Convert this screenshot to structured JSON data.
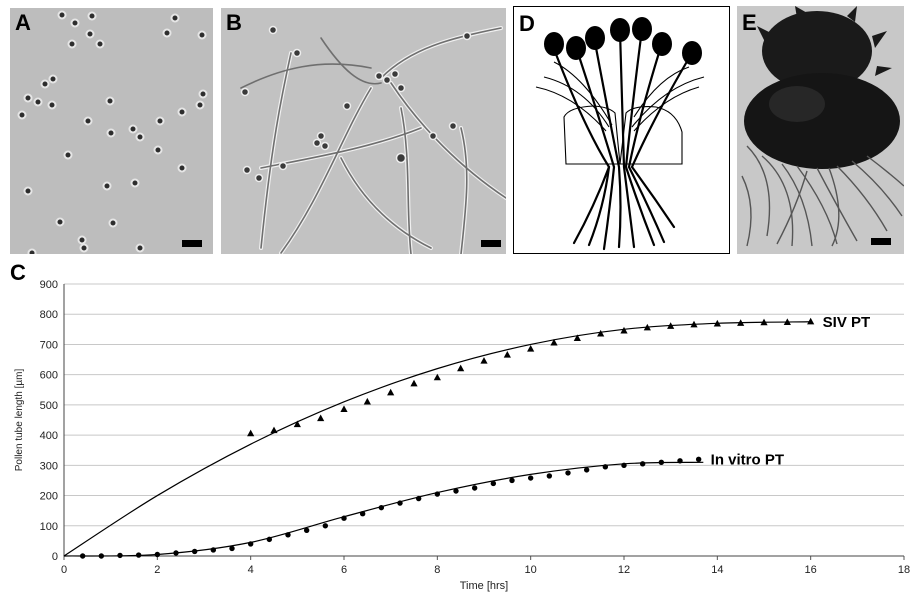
{
  "panels": {
    "a": "A",
    "b": "B",
    "c": "C",
    "d": "D",
    "e": "E"
  },
  "chart_data": {
    "type": "scatter",
    "title": "",
    "xlabel": "Time [hrs]",
    "ylabel": "Pollen tube length [µm]",
    "xlim": [
      0,
      18
    ],
    "ylim": [
      0,
      900
    ],
    "xticks": [
      0,
      2,
      4,
      6,
      8,
      10,
      12,
      14,
      16,
      18
    ],
    "yticks": [
      0,
      100,
      200,
      300,
      400,
      500,
      600,
      700,
      800,
      900
    ],
    "grid": "horizontal",
    "series": [
      {
        "name": "SIV PT",
        "marker": "triangle",
        "x": [
          4,
          4.5,
          5,
          5.5,
          6,
          6.5,
          7,
          7.5,
          8,
          8.5,
          9,
          9.5,
          10,
          10.5,
          11,
          11.5,
          12,
          12.5,
          13,
          13.5,
          14,
          14.5,
          15,
          15.5,
          16
        ],
        "y": [
          405,
          415,
          435,
          455,
          485,
          510,
          540,
          570,
          590,
          620,
          645,
          665,
          685,
          705,
          720,
          735,
          745,
          755,
          760,
          765,
          768,
          770,
          772,
          773,
          775
        ],
        "fit_x": [
          0,
          2,
          4,
          6,
          8,
          10,
          12,
          14,
          16
        ],
        "fit_y": [
          0,
          200,
          370,
          510,
          620,
          700,
          750,
          770,
          775
        ]
      },
      {
        "name": "In vitro PT",
        "marker": "circle",
        "x": [
          0.4,
          0.8,
          1.2,
          1.6,
          2.0,
          2.4,
          2.8,
          3.2,
          3.6,
          4.0,
          4.4,
          4.8,
          5.2,
          5.6,
          6.0,
          6.4,
          6.8,
          7.2,
          7.6,
          8.0,
          8.4,
          8.8,
          9.2,
          9.6,
          10.0,
          10.4,
          10.8,
          11.2,
          11.6,
          12.0,
          12.4,
          12.8,
          13.2,
          13.6
        ],
        "y": [
          0,
          0,
          2,
          3,
          5,
          10,
          15,
          20,
          25,
          40,
          55,
          70,
          85,
          100,
          125,
          140,
          160,
          175,
          190,
          205,
          215,
          225,
          240,
          250,
          258,
          265,
          275,
          285,
          295,
          300,
          305,
          310,
          315,
          320
        ],
        "fit_x": [
          0,
          2,
          4,
          6,
          8,
          10,
          12,
          13.7
        ],
        "fit_y": [
          0,
          5,
          45,
          130,
          210,
          270,
          305,
          310
        ]
      }
    ]
  }
}
